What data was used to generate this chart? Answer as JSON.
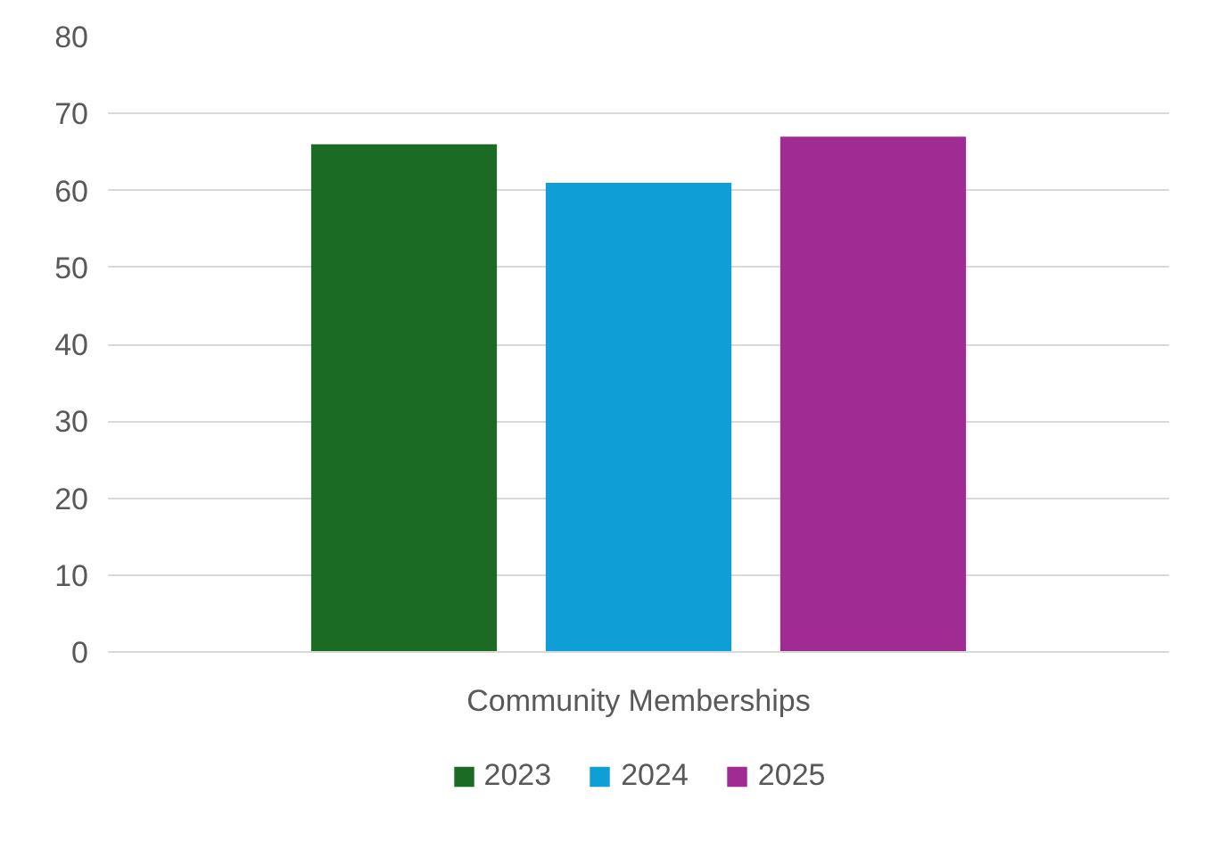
{
  "chart_data": {
    "type": "bar",
    "categories": [
      "Community Memberships"
    ],
    "series": [
      {
        "name": "2023",
        "color": "#1b6b24",
        "values": [
          66
        ]
      },
      {
        "name": "2024",
        "color": "#0f9ed5",
        "values": [
          61
        ]
      },
      {
        "name": "2025",
        "color": "#a02b93",
        "values": [
          67
        ]
      }
    ],
    "ylim": [
      0,
      80
    ],
    "yticks": [
      0,
      10,
      20,
      30,
      40,
      50,
      60,
      70,
      80
    ],
    "grid": "y",
    "legend": "bottom"
  }
}
